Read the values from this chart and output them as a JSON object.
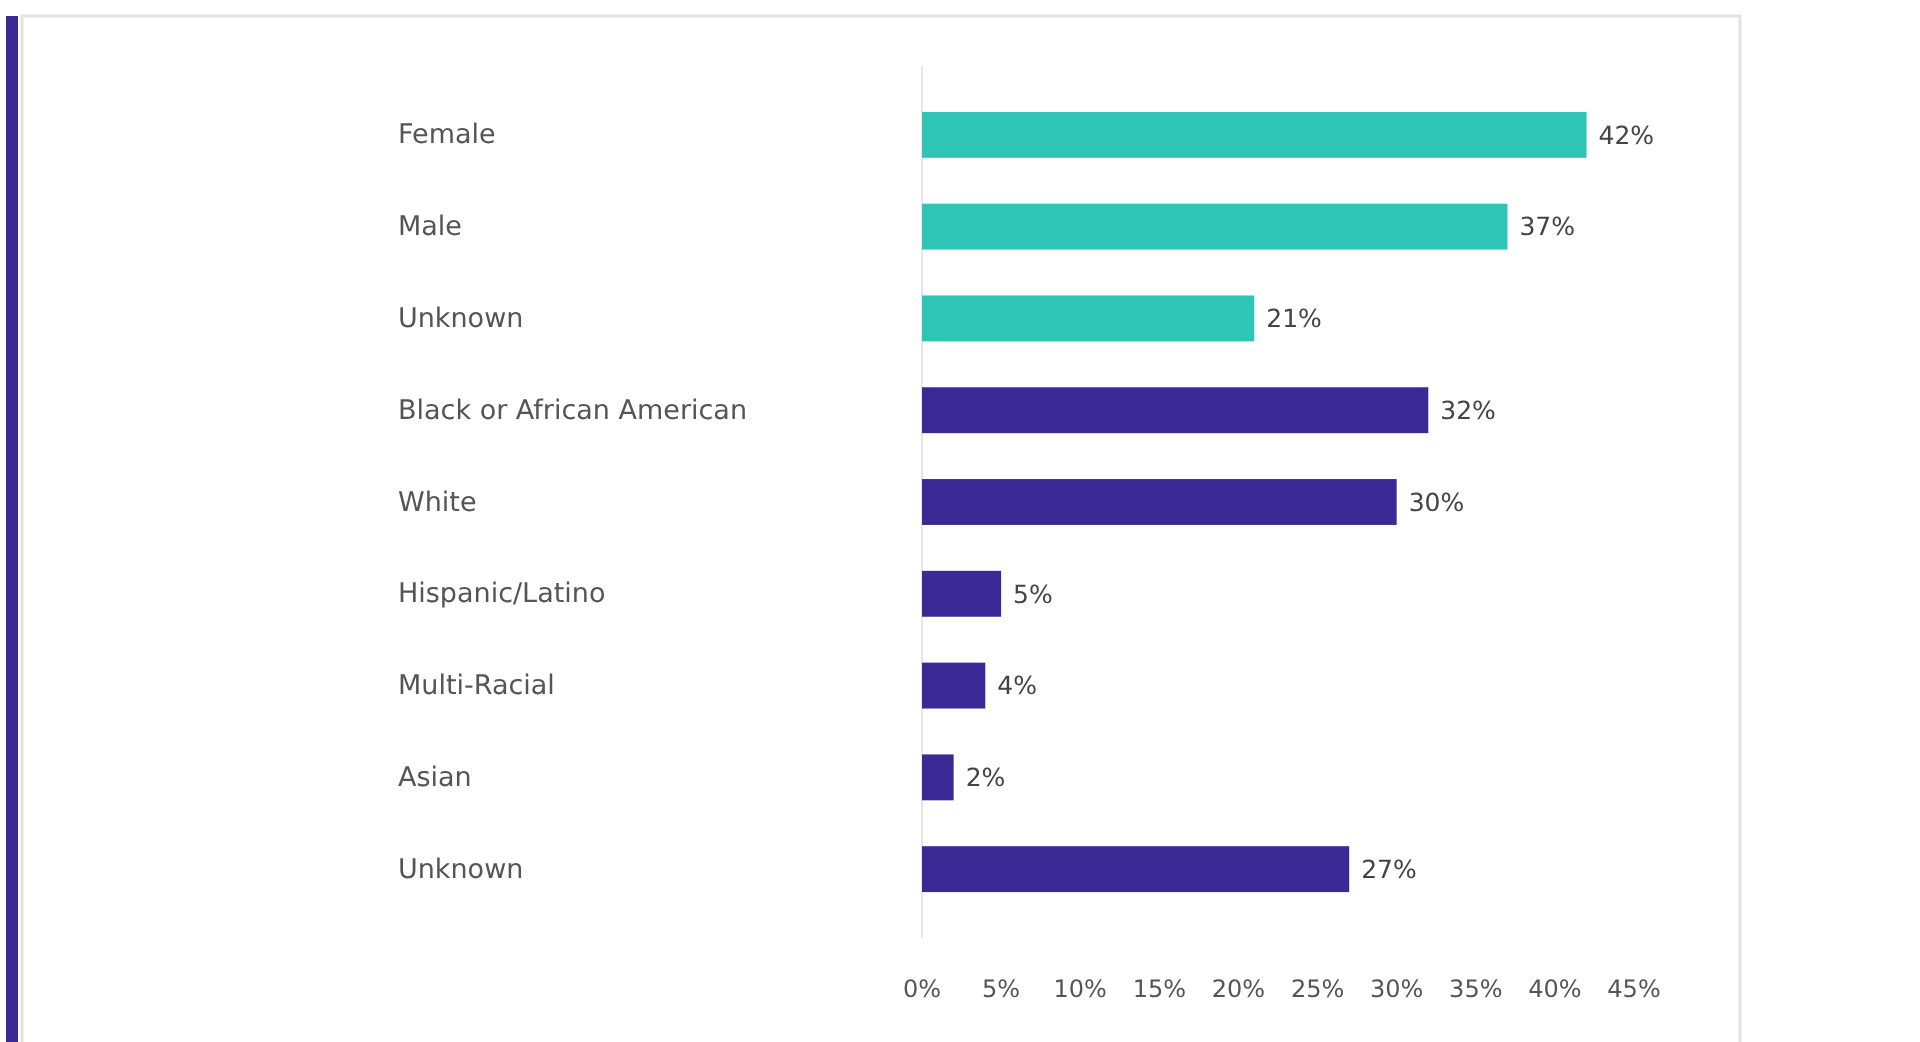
{
  "chart_data": {
    "type": "bar",
    "orientation": "horizontal",
    "categories": [
      "Female",
      "Male",
      "Unknown",
      "Black or African American",
      "White",
      "Hispanic/Latino",
      "Multi-Racial",
      "Asian",
      "Unknown"
    ],
    "values": [
      42,
      37,
      21,
      32,
      30,
      5,
      4,
      2,
      27
    ],
    "colors": [
      "#2ec4b6",
      "#2ec4b6",
      "#2ec4b6",
      "#3b2a96",
      "#3b2a96",
      "#3b2a96",
      "#3b2a96",
      "#3b2a96",
      "#3b2a96"
    ],
    "xlim": [
      0,
      45
    ],
    "xticks": [
      {
        "value": 0,
        "label": "0%"
      },
      {
        "value": 5,
        "label": "5%"
      },
      {
        "value": 10,
        "label": "10%"
      },
      {
        "value": 15,
        "label": "15%"
      },
      {
        "value": 20,
        "label": "20%"
      },
      {
        "value": 25,
        "label": "25%"
      },
      {
        "value": 30,
        "label": "30%"
      },
      {
        "value": 35,
        "label": "35%"
      },
      {
        "value": 40,
        "label": "40%"
      },
      {
        "value": 45,
        "label": "45%"
      }
    ],
    "value_labels": [
      "42%",
      "37%",
      "21%",
      "32%",
      "30%",
      "5%",
      "4%",
      "2%",
      "27%"
    ]
  }
}
